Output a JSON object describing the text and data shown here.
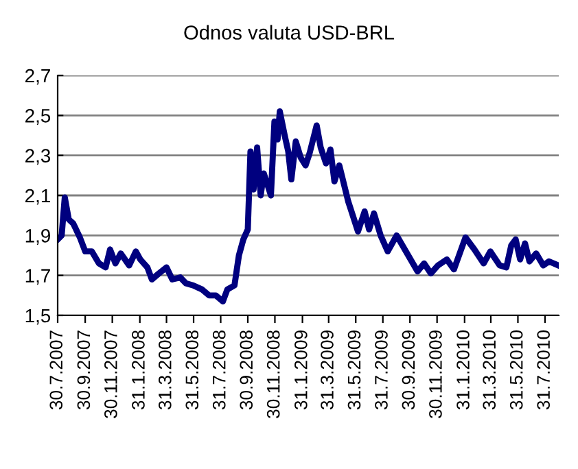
{
  "chart_data": {
    "type": "line",
    "title": "Odnos valuta USD-BRL",
    "x": [
      "2007-07-30",
      "2007-08-08",
      "2007-08-15",
      "2007-08-24",
      "2007-09-03",
      "2007-09-18",
      "2007-09-30",
      "2007-10-15",
      "2007-10-31",
      "2007-11-15",
      "2007-11-25",
      "2007-12-07",
      "2007-12-19",
      "2008-01-07",
      "2008-01-22",
      "2008-02-01",
      "2008-02-17",
      "2008-02-27",
      "2008-03-14",
      "2008-03-31",
      "2008-04-13",
      "2008-05-01",
      "2008-05-14",
      "2008-05-30",
      "2008-06-19",
      "2008-07-05",
      "2008-07-20",
      "2008-08-05",
      "2008-08-15",
      "2008-08-31",
      "2008-09-10",
      "2008-09-20",
      "2008-09-30",
      "2008-10-06",
      "2008-10-13",
      "2008-10-21",
      "2008-10-29",
      "2008-11-05",
      "2008-11-21",
      "2008-11-29",
      "2008-12-06",
      "2008-12-11",
      "2008-12-22",
      "2008-12-30",
      "2009-01-06",
      "2009-01-16",
      "2009-01-27",
      "2009-02-07",
      "2009-02-16",
      "2009-03-04",
      "2009-03-13",
      "2009-03-25",
      "2009-04-04",
      "2009-04-13",
      "2009-04-24",
      "2009-05-14",
      "2009-06-05",
      "2009-06-20",
      "2009-06-30",
      "2009-07-11",
      "2009-07-26",
      "2009-08-11",
      "2009-08-31",
      "2009-09-21",
      "2009-10-17",
      "2009-11-01",
      "2009-11-16",
      "2009-12-02",
      "2009-12-22",
      "2010-01-07",
      "2010-02-02",
      "2010-02-22",
      "2010-03-15",
      "2010-03-30",
      "2010-04-20",
      "2010-05-05",
      "2010-05-16",
      "2010-05-26",
      "2010-06-05",
      "2010-06-16",
      "2010-06-26",
      "2010-07-11",
      "2010-07-27",
      "2010-08-09",
      "2010-08-30"
    ],
    "series": [
      {
        "color": "#00007f",
        "values": [
          1.88,
          1.9,
          2.09,
          1.98,
          1.96,
          1.89,
          1.82,
          1.82,
          1.76,
          1.74,
          1.83,
          1.76,
          1.81,
          1.75,
          1.82,
          1.78,
          1.74,
          1.68,
          1.71,
          1.74,
          1.68,
          1.69,
          1.66,
          1.65,
          1.63,
          1.6,
          1.6,
          1.57,
          1.63,
          1.65,
          1.8,
          1.88,
          1.93,
          2.32,
          2.13,
          2.34,
          2.1,
          2.21,
          2.1,
          2.47,
          2.38,
          2.52,
          2.4,
          2.32,
          2.18,
          2.37,
          2.29,
          2.25,
          2.31,
          2.45,
          2.34,
          2.26,
          2.33,
          2.17,
          2.25,
          2.07,
          1.92,
          2.02,
          1.93,
          2.01,
          1.9,
          1.82,
          1.9,
          1.82,
          1.72,
          1.76,
          1.71,
          1.75,
          1.78,
          1.73,
          1.89,
          1.83,
          1.76,
          1.82,
          1.75,
          1.74,
          1.85,
          1.88,
          1.78,
          1.86,
          1.77,
          1.81,
          1.75,
          1.77,
          1.75
        ]
      }
    ],
    "xlim": [
      "2007-07-30",
      "2010-08-31"
    ],
    "xticks": [
      {
        "value": "2007-07-30",
        "label": "30.7.2007"
      },
      {
        "value": "2007-09-30",
        "label": "30.9.2007"
      },
      {
        "value": "2007-11-30",
        "label": "30.11.2007"
      },
      {
        "value": "2008-01-31",
        "label": "31.1.2008"
      },
      {
        "value": "2008-03-31",
        "label": "31.3.2008"
      },
      {
        "value": "2008-05-31",
        "label": "31.5.2008"
      },
      {
        "value": "2008-07-31",
        "label": "31.7.2008"
      },
      {
        "value": "2008-09-30",
        "label": "30.9.2008"
      },
      {
        "value": "2008-11-30",
        "label": "30.11.2008"
      },
      {
        "value": "2009-01-31",
        "label": "31.1.2009"
      },
      {
        "value": "2009-03-31",
        "label": "31.3.2009"
      },
      {
        "value": "2009-05-31",
        "label": "31.5.2009"
      },
      {
        "value": "2009-07-31",
        "label": "31.7.2009"
      },
      {
        "value": "2009-09-30",
        "label": "30.9.2009"
      },
      {
        "value": "2009-11-30",
        "label": "30.11.2009"
      },
      {
        "value": "2010-01-31",
        "label": "31.1.2010"
      },
      {
        "value": "2010-03-31",
        "label": "31.3.2010"
      },
      {
        "value": "2010-05-31",
        "label": "31.5.2010"
      },
      {
        "value": "2010-07-31",
        "label": "31.7.2010"
      }
    ],
    "ylim": [
      1.5,
      2.7
    ],
    "yticks": [
      {
        "value": 1.5,
        "label": "1,5"
      },
      {
        "value": 1.7,
        "label": "1,7"
      },
      {
        "value": 1.9,
        "label": "1,9"
      },
      {
        "value": 2.1,
        "label": "2,1"
      },
      {
        "value": 2.3,
        "label": "2,3"
      },
      {
        "value": 2.5,
        "label": "2,5"
      },
      {
        "value": 2.7,
        "label": "2,7"
      }
    ],
    "grid": "y",
    "line_style": "solid",
    "marker": "none",
    "legend": false
  }
}
